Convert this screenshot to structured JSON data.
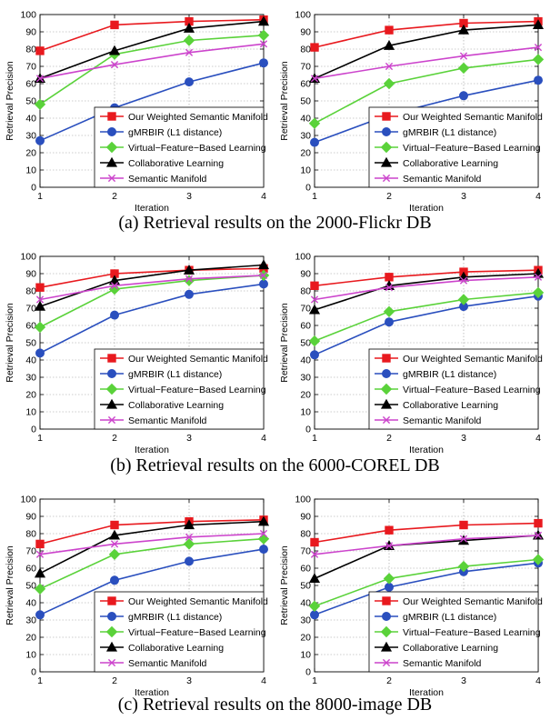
{
  "legend_series": [
    {
      "name": "Our Weighted Semantic Manifold",
      "color": "#e8191e",
      "marker": "square"
    },
    {
      "name": "gMRBIR (L1 distance)",
      "color": "#2a4fbe",
      "marker": "circle"
    },
    {
      "name": "Virtual−Feature−Based Learning",
      "color": "#5ad23a",
      "marker": "diamond"
    },
    {
      "name": "Collaborative Learning",
      "color": "#000000",
      "marker": "triangle"
    },
    {
      "name": "Semantic Manifold",
      "color": "#cc44cc",
      "marker": "x"
    }
  ],
  "captions": [
    "(a)  Retrieval results on the 2000-Flickr DB",
    "(b)  Retrieval results on the 6000-COREL DB",
    "(c)  Retrieval results on the 8000-image DB"
  ],
  "chart_data": [
    {
      "type": "line",
      "xlabel": "Iteration",
      "ylabel": "Retrieval Precision",
      "x": [
        1,
        2,
        3,
        4
      ],
      "xticks": [
        1,
        2,
        3,
        4
      ],
      "yticks": [
        0,
        10,
        20,
        30,
        40,
        50,
        60,
        70,
        80,
        90,
        100
      ],
      "xlim": [
        1,
        4
      ],
      "ylim": [
        0,
        100
      ],
      "grid": true,
      "legend": "bottom-right",
      "series": [
        {
          "name": "Our Weighted Semantic Manifold",
          "values": [
            79,
            94,
            96,
            97
          ]
        },
        {
          "name": "gMRBIR (L1 distance)",
          "values": [
            27,
            46,
            61,
            72
          ]
        },
        {
          "name": "Virtual−Feature−Based Learning",
          "values": [
            48,
            77,
            85,
            88
          ]
        },
        {
          "name": "Collaborative Learning",
          "values": [
            63,
            79,
            92,
            96
          ]
        },
        {
          "name": "Semantic Manifold",
          "values": [
            63,
            71,
            78,
            83
          ]
        }
      ]
    },
    {
      "type": "line",
      "xlabel": "Iteration",
      "ylabel": "Retrieval Precision",
      "x": [
        1,
        2,
        3,
        4
      ],
      "xticks": [
        1,
        2,
        3,
        4
      ],
      "yticks": [
        0,
        10,
        20,
        30,
        40,
        50,
        60,
        70,
        80,
        90,
        100
      ],
      "xlim": [
        1,
        4
      ],
      "ylim": [
        0,
        100
      ],
      "grid": true,
      "legend": "bottom-right",
      "series": [
        {
          "name": "Our Weighted Semantic Manifold",
          "values": [
            81,
            91,
            95,
            96
          ]
        },
        {
          "name": "gMRBIR (L1 distance)",
          "values": [
            26,
            42,
            53,
            62
          ]
        },
        {
          "name": "Virtual−Feature−Based Learning",
          "values": [
            37,
            60,
            69,
            74
          ]
        },
        {
          "name": "Collaborative Learning",
          "values": [
            63,
            82,
            91,
            94
          ]
        },
        {
          "name": "Semantic Manifold",
          "values": [
            63,
            70,
            76,
            81
          ]
        }
      ]
    },
    {
      "type": "line",
      "xlabel": "Iteration",
      "ylabel": "Retrieval Precision",
      "x": [
        1,
        2,
        3,
        4
      ],
      "xticks": [
        1,
        2,
        3,
        4
      ],
      "yticks": [
        0,
        10,
        20,
        30,
        40,
        50,
        60,
        70,
        80,
        90,
        100
      ],
      "xlim": [
        1,
        4
      ],
      "ylim": [
        0,
        100
      ],
      "grid": true,
      "legend": "bottom-right",
      "series": [
        {
          "name": "Our Weighted Semantic Manifold",
          "values": [
            82,
            90,
            92,
            93
          ]
        },
        {
          "name": "gMRBIR (L1 distance)",
          "values": [
            44,
            66,
            78,
            84
          ]
        },
        {
          "name": "Virtual−Feature−Based Learning",
          "values": [
            59,
            81,
            86,
            89
          ]
        },
        {
          "name": "Collaborative Learning",
          "values": [
            71,
            86,
            92,
            95
          ]
        },
        {
          "name": "Semantic Manifold",
          "values": [
            75,
            83,
            87,
            89
          ]
        }
      ]
    },
    {
      "type": "line",
      "xlabel": "Iteration",
      "ylabel": "Retrieval Precision",
      "x": [
        1,
        2,
        3,
        4
      ],
      "xticks": [
        1,
        2,
        3,
        4
      ],
      "yticks": [
        0,
        10,
        20,
        30,
        40,
        50,
        60,
        70,
        80,
        90,
        100
      ],
      "xlim": [
        1,
        4
      ],
      "ylim": [
        0,
        100
      ],
      "grid": true,
      "legend": "bottom-right",
      "series": [
        {
          "name": "Our Weighted Semantic Manifold",
          "values": [
            83,
            88,
            91,
            92
          ]
        },
        {
          "name": "gMRBIR (L1 distance)",
          "values": [
            43,
            62,
            71,
            77
          ]
        },
        {
          "name": "Virtual−Feature−Based Learning",
          "values": [
            51,
            68,
            75,
            79
          ]
        },
        {
          "name": "Collaborative Learning",
          "values": [
            69,
            83,
            88,
            90
          ]
        },
        {
          "name": "Semantic Manifold",
          "values": [
            75,
            82,
            86,
            88
          ]
        }
      ]
    },
    {
      "type": "line",
      "xlabel": "Iteration",
      "ylabel": "Retrieval Precision",
      "x": [
        1,
        2,
        3,
        4
      ],
      "xticks": [
        1,
        2,
        3,
        4
      ],
      "yticks": [
        0,
        10,
        20,
        30,
        40,
        50,
        60,
        70,
        80,
        90,
        100
      ],
      "xlim": [
        1,
        4
      ],
      "ylim": [
        0,
        100
      ],
      "grid": true,
      "legend": "bottom-right",
      "series": [
        {
          "name": "Our Weighted Semantic Manifold",
          "values": [
            74,
            85,
            87,
            88
          ]
        },
        {
          "name": "gMRBIR (L1 distance)",
          "values": [
            33,
            53,
            64,
            71
          ]
        },
        {
          "name": "Virtual−Feature−Based Learning",
          "values": [
            48,
            68,
            74,
            77
          ]
        },
        {
          "name": "Collaborative Learning",
          "values": [
            57,
            79,
            85,
            87
          ]
        },
        {
          "name": "Semantic Manifold",
          "values": [
            68,
            74,
            78,
            80
          ]
        }
      ]
    },
    {
      "type": "line",
      "xlabel": "Iteration",
      "ylabel": "Retrieval Precision",
      "x": [
        1,
        2,
        3,
        4
      ],
      "xticks": [
        1,
        2,
        3,
        4
      ],
      "yticks": [
        0,
        10,
        20,
        30,
        40,
        50,
        60,
        70,
        80,
        90,
        100
      ],
      "xlim": [
        1,
        4
      ],
      "ylim": [
        0,
        100
      ],
      "grid": true,
      "legend": "bottom-right",
      "series": [
        {
          "name": "Our Weighted Semantic Manifold",
          "values": [
            75,
            82,
            85,
            86
          ]
        },
        {
          "name": "gMRBIR (L1 distance)",
          "values": [
            33,
            49,
            58,
            63
          ]
        },
        {
          "name": "Virtual−Feature−Based Learning",
          "values": [
            38,
            54,
            61,
            65
          ]
        },
        {
          "name": "Collaborative Learning",
          "values": [
            54,
            73,
            76,
            79
          ]
        },
        {
          "name": "Semantic Manifold",
          "values": [
            68,
            73,
            77,
            79
          ]
        }
      ]
    }
  ]
}
